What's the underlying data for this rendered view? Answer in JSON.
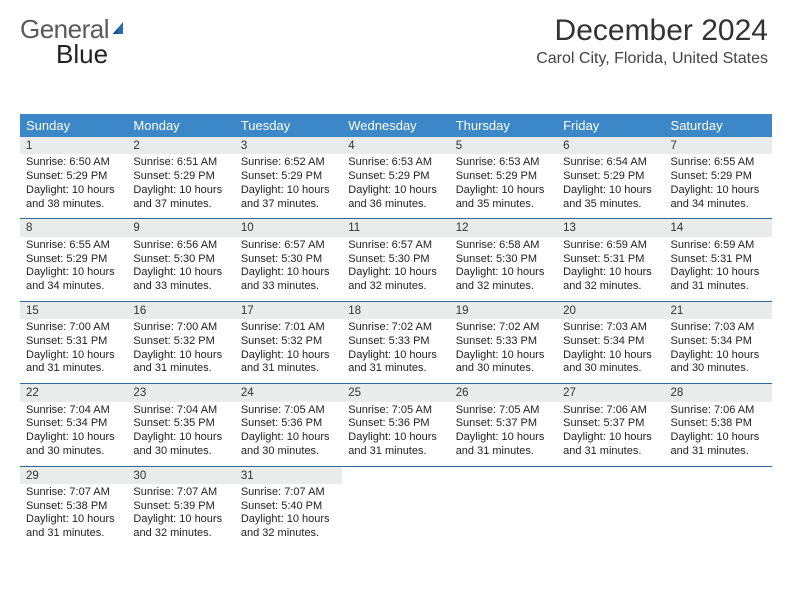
{
  "logo": {
    "text1": "General",
    "text2": "Blue"
  },
  "header": {
    "title": "December 2024",
    "subtitle": "Carol City, Florida, United States"
  },
  "colors": {
    "header_bg": "#3b87c8",
    "header_text": "#ffffff",
    "daynum_bg": "#e9eceb",
    "sep": "#2e6ca8",
    "brand_blue": "#2a6bb0"
  },
  "calendar": {
    "type": "table",
    "days": [
      "Sunday",
      "Monday",
      "Tuesday",
      "Wednesday",
      "Thursday",
      "Friday",
      "Saturday"
    ],
    "weeks": [
      [
        {
          "n": "1",
          "sr": "Sunrise: 6:50 AM",
          "ss": "Sunset: 5:29 PM",
          "dl": "Daylight: 10 hours and 38 minutes."
        },
        {
          "n": "2",
          "sr": "Sunrise: 6:51 AM",
          "ss": "Sunset: 5:29 PM",
          "dl": "Daylight: 10 hours and 37 minutes."
        },
        {
          "n": "3",
          "sr": "Sunrise: 6:52 AM",
          "ss": "Sunset: 5:29 PM",
          "dl": "Daylight: 10 hours and 37 minutes."
        },
        {
          "n": "4",
          "sr": "Sunrise: 6:53 AM",
          "ss": "Sunset: 5:29 PM",
          "dl": "Daylight: 10 hours and 36 minutes."
        },
        {
          "n": "5",
          "sr": "Sunrise: 6:53 AM",
          "ss": "Sunset: 5:29 PM",
          "dl": "Daylight: 10 hours and 35 minutes."
        },
        {
          "n": "6",
          "sr": "Sunrise: 6:54 AM",
          "ss": "Sunset: 5:29 PM",
          "dl": "Daylight: 10 hours and 35 minutes."
        },
        {
          "n": "7",
          "sr": "Sunrise: 6:55 AM",
          "ss": "Sunset: 5:29 PM",
          "dl": "Daylight: 10 hours and 34 minutes."
        }
      ],
      [
        {
          "n": "8",
          "sr": "Sunrise: 6:55 AM",
          "ss": "Sunset: 5:29 PM",
          "dl": "Daylight: 10 hours and 34 minutes."
        },
        {
          "n": "9",
          "sr": "Sunrise: 6:56 AM",
          "ss": "Sunset: 5:30 PM",
          "dl": "Daylight: 10 hours and 33 minutes."
        },
        {
          "n": "10",
          "sr": "Sunrise: 6:57 AM",
          "ss": "Sunset: 5:30 PM",
          "dl": "Daylight: 10 hours and 33 minutes."
        },
        {
          "n": "11",
          "sr": "Sunrise: 6:57 AM",
          "ss": "Sunset: 5:30 PM",
          "dl": "Daylight: 10 hours and 32 minutes."
        },
        {
          "n": "12",
          "sr": "Sunrise: 6:58 AM",
          "ss": "Sunset: 5:30 PM",
          "dl": "Daylight: 10 hours and 32 minutes."
        },
        {
          "n": "13",
          "sr": "Sunrise: 6:59 AM",
          "ss": "Sunset: 5:31 PM",
          "dl": "Daylight: 10 hours and 32 minutes."
        },
        {
          "n": "14",
          "sr": "Sunrise: 6:59 AM",
          "ss": "Sunset: 5:31 PM",
          "dl": "Daylight: 10 hours and 31 minutes."
        }
      ],
      [
        {
          "n": "15",
          "sr": "Sunrise: 7:00 AM",
          "ss": "Sunset: 5:31 PM",
          "dl": "Daylight: 10 hours and 31 minutes."
        },
        {
          "n": "16",
          "sr": "Sunrise: 7:00 AM",
          "ss": "Sunset: 5:32 PM",
          "dl": "Daylight: 10 hours and 31 minutes."
        },
        {
          "n": "17",
          "sr": "Sunrise: 7:01 AM",
          "ss": "Sunset: 5:32 PM",
          "dl": "Daylight: 10 hours and 31 minutes."
        },
        {
          "n": "18",
          "sr": "Sunrise: 7:02 AM",
          "ss": "Sunset: 5:33 PM",
          "dl": "Daylight: 10 hours and 31 minutes."
        },
        {
          "n": "19",
          "sr": "Sunrise: 7:02 AM",
          "ss": "Sunset: 5:33 PM",
          "dl": "Daylight: 10 hours and 30 minutes."
        },
        {
          "n": "20",
          "sr": "Sunrise: 7:03 AM",
          "ss": "Sunset: 5:34 PM",
          "dl": "Daylight: 10 hours and 30 minutes."
        },
        {
          "n": "21",
          "sr": "Sunrise: 7:03 AM",
          "ss": "Sunset: 5:34 PM",
          "dl": "Daylight: 10 hours and 30 minutes."
        }
      ],
      [
        {
          "n": "22",
          "sr": "Sunrise: 7:04 AM",
          "ss": "Sunset: 5:34 PM",
          "dl": "Daylight: 10 hours and 30 minutes."
        },
        {
          "n": "23",
          "sr": "Sunrise: 7:04 AM",
          "ss": "Sunset: 5:35 PM",
          "dl": "Daylight: 10 hours and 30 minutes."
        },
        {
          "n": "24",
          "sr": "Sunrise: 7:05 AM",
          "ss": "Sunset: 5:36 PM",
          "dl": "Daylight: 10 hours and 30 minutes."
        },
        {
          "n": "25",
          "sr": "Sunrise: 7:05 AM",
          "ss": "Sunset: 5:36 PM",
          "dl": "Daylight: 10 hours and 31 minutes."
        },
        {
          "n": "26",
          "sr": "Sunrise: 7:05 AM",
          "ss": "Sunset: 5:37 PM",
          "dl": "Daylight: 10 hours and 31 minutes."
        },
        {
          "n": "27",
          "sr": "Sunrise: 7:06 AM",
          "ss": "Sunset: 5:37 PM",
          "dl": "Daylight: 10 hours and 31 minutes."
        },
        {
          "n": "28",
          "sr": "Sunrise: 7:06 AM",
          "ss": "Sunset: 5:38 PM",
          "dl": "Daylight: 10 hours and 31 minutes."
        }
      ],
      [
        {
          "n": "29",
          "sr": "Sunrise: 7:07 AM",
          "ss": "Sunset: 5:38 PM",
          "dl": "Daylight: 10 hours and 31 minutes."
        },
        {
          "n": "30",
          "sr": "Sunrise: 7:07 AM",
          "ss": "Sunset: 5:39 PM",
          "dl": "Daylight: 10 hours and 32 minutes."
        },
        {
          "n": "31",
          "sr": "Sunrise: 7:07 AM",
          "ss": "Sunset: 5:40 PM",
          "dl": "Daylight: 10 hours and 32 minutes."
        },
        null,
        null,
        null,
        null
      ]
    ]
  }
}
